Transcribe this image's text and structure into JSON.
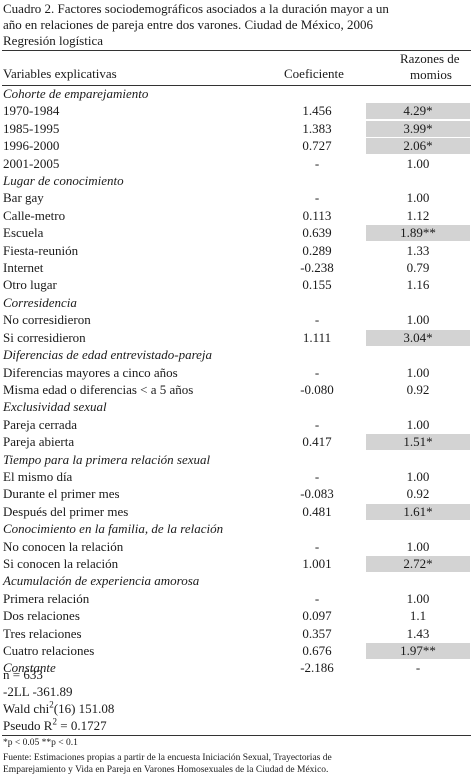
{
  "title": {
    "line1": "Cuadro 2. Factores sociodemográficos asociados a la duración mayor a un",
    "line2": "año en relaciones de pareja entre dos varones. Ciudad de México, 2006",
    "line3": "Regresión logística"
  },
  "headers": {
    "variables": "Variables explicativas",
    "coefficient": "Coeficiente",
    "rr_line1": "Razones de",
    "rr_line2": "momios"
  },
  "rows": [
    {
      "label": "Cohorte de emparejamiento",
      "section": true
    },
    {
      "label": "1970-1984",
      "coef": "1.456",
      "rr": "4.29*",
      "highlight": true
    },
    {
      "label": "1985-1995",
      "coef": "1.383",
      "rr": "3.99*",
      "highlight": true
    },
    {
      "label": "1996-2000",
      "coef": "0.727",
      "rr": "2.06*",
      "highlight": true
    },
    {
      "label": "2001-2005",
      "coef": "-",
      "rr": "1.00"
    },
    {
      "label": "Lugar de conocimiento",
      "section": true
    },
    {
      "label": "Bar gay",
      "coef": "-",
      "rr": "1.00"
    },
    {
      "label": "Calle-metro",
      "coef": "0.113",
      "rr": "1.12"
    },
    {
      "label": "Escuela",
      "coef": "0.639",
      "rr": "1.89**",
      "highlight": true
    },
    {
      "label": "Fiesta-reunión",
      "coef": "0.289",
      "rr": "1.33"
    },
    {
      "label": "Internet",
      "coef": "-0.238",
      "rr": "0.79"
    },
    {
      "label": "Otro lugar",
      "coef": "0.155",
      "rr": "1.16"
    },
    {
      "label": "Corresidencia",
      "section": true
    },
    {
      "label": "No corresidieron",
      "coef": "-",
      "rr": "1.00"
    },
    {
      "label": "Si corresidieron",
      "coef": "1.111",
      "rr": "3.04*",
      "highlight": true
    },
    {
      "label": "Diferencias de edad entrevistado-pareja",
      "section": true
    },
    {
      "label": "Diferencias mayores a cinco años",
      "coef": "-",
      "rr": "1.00"
    },
    {
      "label": "Misma edad o diferencias < a 5 años",
      "coef": "-0.080",
      "rr": "0.92"
    },
    {
      "label": "Exclusividad sexual",
      "section": true
    },
    {
      "label": "Pareja cerrada",
      "coef": "-",
      "rr": "1.00"
    },
    {
      "label": "Pareja abierta",
      "coef": "0.417",
      "rr": "1.51*",
      "highlight": true
    },
    {
      "label": "Tiempo para la primera relación sexual",
      "section": true
    },
    {
      "label": "El mismo día",
      "coef": "-",
      "rr": "1.00"
    },
    {
      "label": "Durante el primer mes",
      "coef": "-0.083",
      "rr": "0.92"
    },
    {
      "label": "Después del primer mes",
      "coef": "0.481",
      "rr": "1.61*",
      "highlight": true
    },
    {
      "label": "Conocimiento en la familia, de la relación",
      "section": true
    },
    {
      "label": "No conocen la relación",
      "coef": "-",
      "rr": "1.00"
    },
    {
      "label": "Si conocen la relación",
      "coef": "1.001",
      "rr": "2.72*",
      "highlight": true
    },
    {
      "label": "Acumulación de experiencia amorosa",
      "section": true
    },
    {
      "label": "Primera relación",
      "coef": "-",
      "rr": "1.00"
    },
    {
      "label": "Dos relaciones",
      "coef": "0.097",
      "rr": "1.1"
    },
    {
      "label": "Tres relaciones",
      "coef": "0.357",
      "rr": "1.43"
    },
    {
      "label": "Cuatro relaciones",
      "coef": "0.676",
      "rr": "1.97**",
      "highlight": true
    },
    {
      "label": "Constante",
      "section": true,
      "coef": "-2.186",
      "rr": "-"
    }
  ],
  "stats": {
    "n": "n = 633",
    "ll": "-2LL -361.89",
    "wald_pre": "Wald chi",
    "wald_sup": "2",
    "wald_post": "(16)  151.08",
    "pseudo_pre": "Pseudo R",
    "pseudo_sup": "2",
    "pseudo_post": " = 0.1727"
  },
  "footnotes": {
    "significance": "*p < 0.05     **p < 0.1",
    "source_line1": "Fuente: Estimaciones propias a partir de la encuesta  Iniciación Sexual, Trayectorias de",
    "source_line2": "Emparejamiento y Vida en Pareja en Varones Homosexuales de la Ciudad de México."
  },
  "colors": {
    "highlight": "#d3d3d3",
    "rule": "#333333"
  }
}
